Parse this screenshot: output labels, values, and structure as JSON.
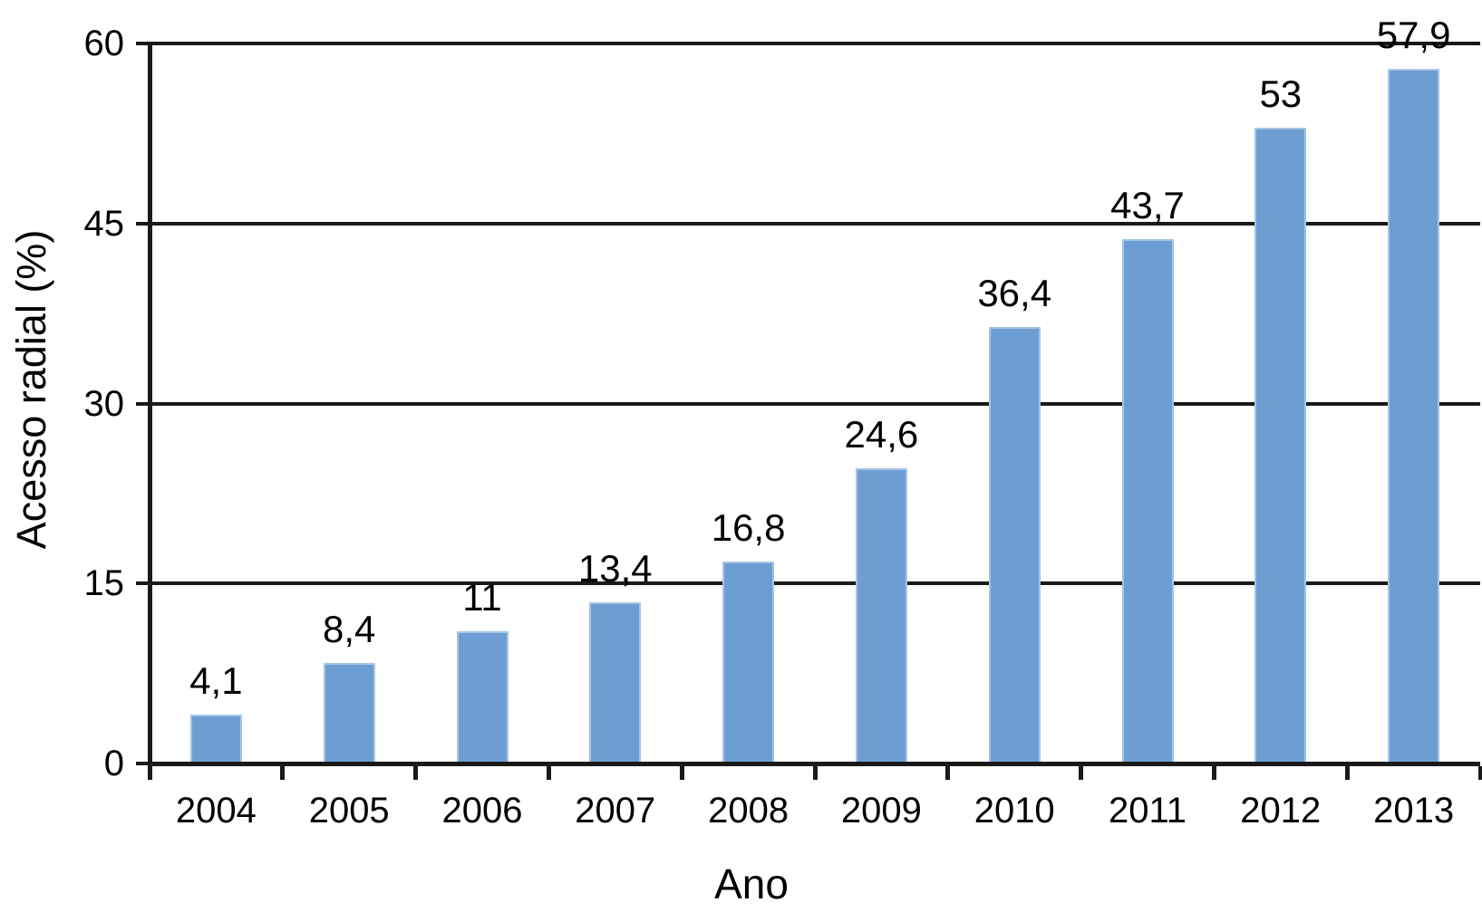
{
  "chart_data": {
    "type": "bar",
    "title": "",
    "categories": [
      "2004",
      "2005",
      "2006",
      "2007",
      "2008",
      "2009",
      "2010",
      "2011",
      "2012",
      "2013"
    ],
    "values": [
      4.1,
      8.4,
      11,
      13.4,
      16.8,
      24.6,
      36.4,
      43.7,
      53,
      57.9
    ],
    "value_labels": [
      "4,1",
      "8,4",
      "11",
      "13,4",
      "16,8",
      "24,6",
      "36,4",
      "43,7",
      "53",
      "57,9"
    ],
    "xlabel": "Ano",
    "ylabel": "Acesso radial (%)",
    "ylim": [
      0,
      60
    ],
    "yticks": [
      0,
      15,
      30,
      45,
      60
    ],
    "grid": "horizontal-only",
    "legend": "none",
    "bar_color": "#6D9ED3",
    "bar_edge_color": "#A6C4E5",
    "axis_color": "#1A1A1A",
    "text_color": "#000000",
    "background_color": "#FFFFFF"
  }
}
